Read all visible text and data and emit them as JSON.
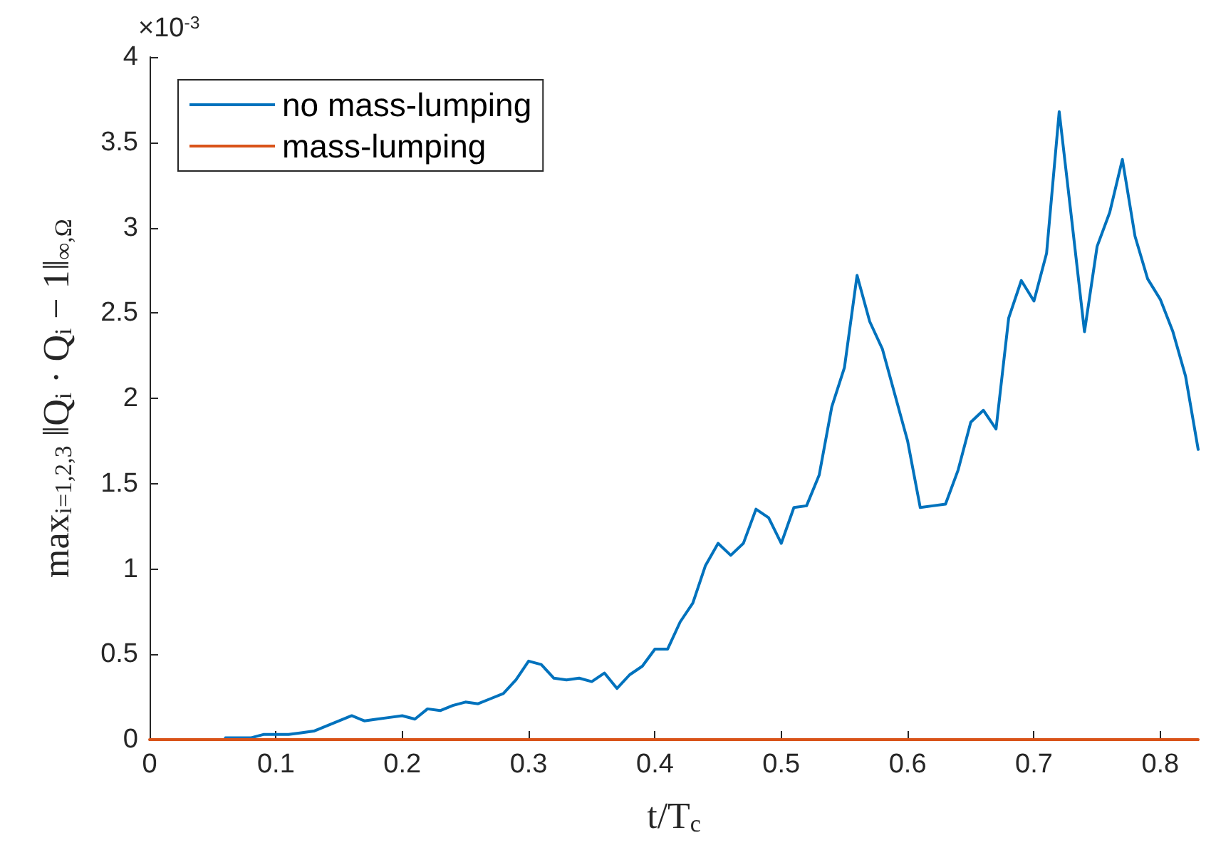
{
  "chart_data": {
    "type": "line",
    "xlabel": "t/T$_{c}$",
    "ylabel": "max$_{i=1,2,3}$ ‖Q$_{i}$ · Q$_{i}$ − 1‖$_{∞,Ω}$",
    "annotations": [
      "×10$^{-3}$"
    ],
    "legend": "top left",
    "grid": false,
    "marker": "none",
    "line_style": "solid",
    "xlim": [
      0,
      0.83
    ],
    "xticks": [
      0,
      0.1,
      0.2,
      0.3,
      0.4,
      0.5,
      0.6,
      0.7,
      0.8
    ],
    "ylim": [
      0,
      4
    ],
    "yticks": [
      0,
      0.5,
      1,
      1.5,
      2,
      2.5,
      3,
      3.5,
      4
    ],
    "series": [
      {
        "name": "no mass-lumping",
        "color": "#0072bd",
        "x": [
          0.06,
          0.07,
          0.08,
          0.09,
          0.1,
          0.11,
          0.12,
          0.13,
          0.14,
          0.15,
          0.16,
          0.17,
          0.18,
          0.19,
          0.2,
          0.21,
          0.22,
          0.23,
          0.24,
          0.25,
          0.26,
          0.27,
          0.28,
          0.29,
          0.3,
          0.31,
          0.32,
          0.33,
          0.34,
          0.35,
          0.36,
          0.37,
          0.38,
          0.39,
          0.4,
          0.41,
          0.42,
          0.43,
          0.44,
          0.45,
          0.46,
          0.47,
          0.48,
          0.49,
          0.5,
          0.51,
          0.52,
          0.53,
          0.54,
          0.55,
          0.56,
          0.57,
          0.58,
          0.59,
          0.6,
          0.61,
          0.62,
          0.63,
          0.64,
          0.65,
          0.66,
          0.67,
          0.68,
          0.69,
          0.7,
          0.71,
          0.72,
          0.73,
          0.74,
          0.75,
          0.76,
          0.77,
          0.78,
          0.79,
          0.8,
          0.81,
          0.82,
          0.83
        ],
        "values": [
          0.01,
          0.01,
          0.01,
          0.03,
          0.03,
          0.03,
          0.04,
          0.05,
          0.08,
          0.11,
          0.14,
          0.11,
          0.12,
          0.13,
          0.14,
          0.12,
          0.18,
          0.17,
          0.2,
          0.22,
          0.21,
          0.24,
          0.27,
          0.35,
          0.46,
          0.44,
          0.36,
          0.35,
          0.36,
          0.34,
          0.39,
          0.3,
          0.38,
          0.43,
          0.53,
          0.53,
          0.69,
          0.8,
          1.02,
          1.15,
          1.08,
          1.15,
          1.35,
          1.3,
          1.15,
          1.36,
          1.37,
          1.55,
          1.95,
          2.18,
          2.72,
          2.45,
          2.29,
          2.02,
          1.75,
          1.36,
          1.37,
          1.38,
          1.58,
          1.86,
          1.93,
          1.82,
          2.47,
          2.69,
          2.57,
          2.85,
          3.68,
          3.04,
          2.39,
          2.89,
          3.09,
          3.4,
          2.95,
          2.7,
          2.58,
          2.39,
          2.13,
          1.7
        ]
      },
      {
        "name": "mass-lumping",
        "color": "#d95319",
        "x": [
          0,
          0.83
        ],
        "values": [
          0,
          0
        ]
      }
    ]
  }
}
